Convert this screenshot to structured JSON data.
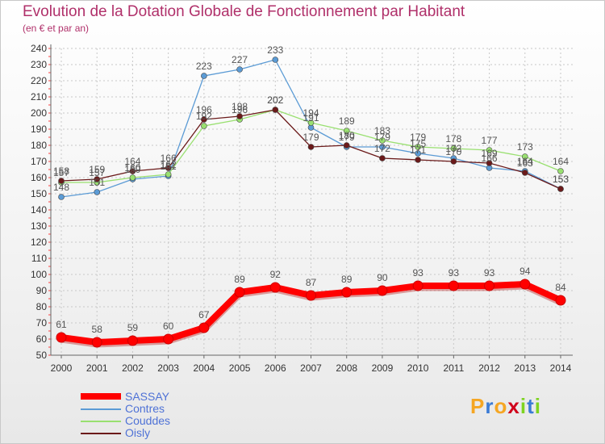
{
  "chart_data": {
    "type": "line",
    "title": "Evolution de la Dotation Globale de Fonctionnement par Habitant",
    "subtitle": "(en € et par an)",
    "x": [
      2000,
      2001,
      2002,
      2003,
      2004,
      2005,
      2006,
      2007,
      2008,
      2009,
      2010,
      2011,
      2012,
      2013,
      2014
    ],
    "ylim": [
      50,
      240
    ],
    "yticks": [
      50,
      60,
      70,
      80,
      90,
      100,
      110,
      120,
      130,
      140,
      150,
      160,
      170,
      180,
      190,
      200,
      210,
      220,
      230,
      240
    ],
    "grid": "dashed",
    "series": [
      {
        "name": "SASSAY",
        "color": "#ff0000",
        "values": [
          61,
          58,
          59,
          60,
          67,
          89,
          92,
          87,
          89,
          90,
          93,
          93,
          93,
          94,
          84
        ]
      },
      {
        "name": "Contres",
        "color": "#5b9bd5",
        "values": [
          148,
          151,
          159,
          161,
          223,
          227,
          233,
          191,
          179,
          179,
          175,
          172,
          166,
          164,
          153
        ]
      },
      {
        "name": "Couddes",
        "color": "#99e070",
        "values": [
          157,
          157,
          160,
          162,
          192,
          196,
          202,
          194,
          189,
          183,
          179,
          178,
          177,
          173,
          164
        ]
      },
      {
        "name": "Oisly",
        "color": "#6b1a1a",
        "values": [
          158,
          159,
          164,
          166,
          196,
          198,
          202,
          179,
          180,
          172,
          171,
          170,
          169,
          163,
          153
        ]
      }
    ]
  },
  "legend": {
    "items": [
      {
        "label": "SASSAY",
        "color": "#ff0000"
      },
      {
        "label": "Contres",
        "color": "#5b9bd5"
      },
      {
        "label": "Couddes",
        "color": "#99e070"
      },
      {
        "label": "Oisly",
        "color": "#6b1a1a"
      }
    ]
  },
  "logo": {
    "text": "Proxiti",
    "letter_colors": [
      "#f5a623",
      "#3a7bd5",
      "#f5a623",
      "#d0021b",
      "#7ed321",
      "#3a7bd5",
      "#7ed321"
    ]
  }
}
